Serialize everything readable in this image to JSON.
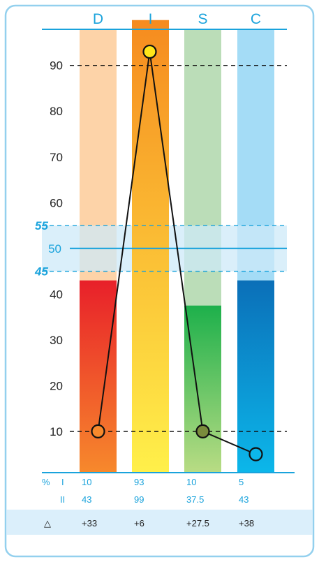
{
  "chart_data": {
    "type": "bar",
    "categories": [
      "D",
      "I",
      "S",
      "C"
    ],
    "y_ticks": [
      10,
      20,
      30,
      40,
      60,
      70,
      80,
      90
    ],
    "ylim": [
      0,
      100
    ],
    "reference_lines": [
      10,
      90
    ],
    "mid_line": {
      "value": 50,
      "label": "50"
    },
    "band": {
      "low": 45,
      "high": 55,
      "low_label": "45",
      "high_label": "55"
    },
    "series": [
      {
        "values": [
          43,
          99,
          37.5,
          43
        ]
      },
      {
        "values": [
          10,
          93,
          10,
          5
        ]
      }
    ],
    "colors": {
      "D": {
        "light": "#fdd3a8",
        "top": "#e8202a",
        "bottom": "#f7892c"
      },
      "I": {
        "light": "#f7892c",
        "top": "#f68b1f",
        "bottom": "#fff04a"
      },
      "S": {
        "light": "#bbddb8",
        "top": "#1db04b",
        "bottom": "#b9dc84"
      },
      "C": {
        "light": "#a4dcf6",
        "top": "#0b6fb8",
        "bottom": "#0cb7ea"
      }
    },
    "marker_colors": [
      "#f7892c",
      "#ffe51a",
      "#7a8c3c",
      "#0cb7ea"
    ],
    "accent_color": "#1aa3dc"
  },
  "table": {
    "percent_symbol": "%",
    "row_labels": [
      "I",
      "II"
    ],
    "row1": [
      "10",
      "93",
      "10",
      "5"
    ],
    "row2": [
      "43",
      "99",
      "37.5",
      "43"
    ],
    "delta_symbol": "△",
    "diffs": [
      "+33",
      "+6",
      "+27.5",
      "+38"
    ]
  }
}
